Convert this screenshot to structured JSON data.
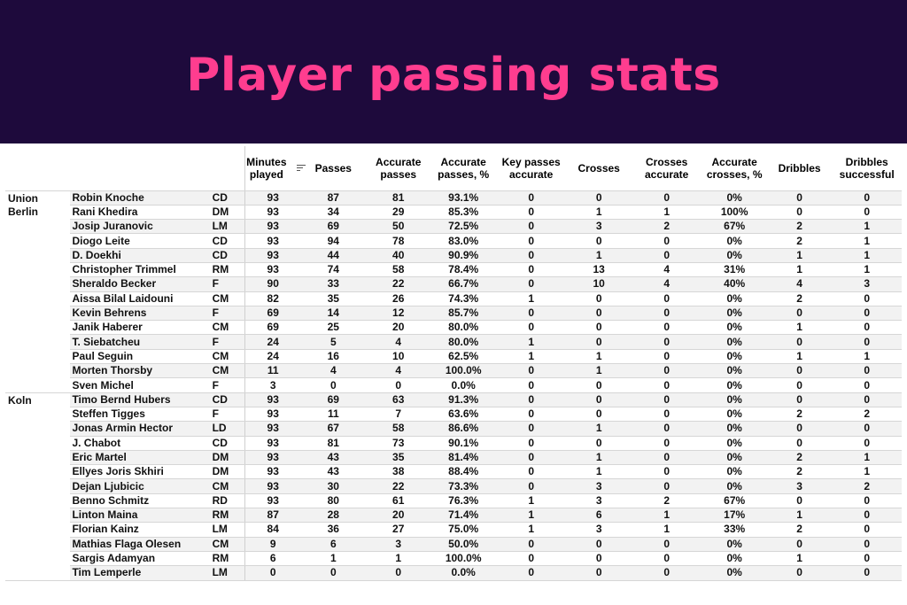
{
  "title": "Player passing stats",
  "columns": {
    "minutes_played": "Minutes played",
    "passes": "Passes",
    "accurate_passes": "Accurate passes",
    "accurate_passes_pct": "Accurate passes, %",
    "key_passes_accurate": "Key passes accurate",
    "crosses": "Crosses",
    "crosses_accurate": "Crosses accurate",
    "accurate_crosses_pct": "Accurate crosses, %",
    "dribbles": "Dribbles",
    "dribbles_successful": "Dribbles successful"
  },
  "sort_icon": "sort-descending-icon",
  "teams": [
    {
      "name": "Union Berlin",
      "players": [
        [
          "Robin Knoche",
          "CD",
          "93",
          "87",
          "81",
          "93.1%",
          "0",
          "0",
          "0",
          "0%",
          "0",
          "0"
        ],
        [
          "Rani Khedira",
          "DM",
          "93",
          "34",
          "29",
          "85.3%",
          "0",
          "1",
          "1",
          "100%",
          "0",
          "0"
        ],
        [
          "Josip Juranovic",
          "LM",
          "93",
          "69",
          "50",
          "72.5%",
          "0",
          "3",
          "2",
          "67%",
          "2",
          "1"
        ],
        [
          "Diogo Leite",
          "CD",
          "93",
          "94",
          "78",
          "83.0%",
          "0",
          "0",
          "0",
          "0%",
          "2",
          "1"
        ],
        [
          "D. Doekhi",
          "CD",
          "93",
          "44",
          "40",
          "90.9%",
          "0",
          "1",
          "0",
          "0%",
          "1",
          "1"
        ],
        [
          "Christopher Trimmel",
          "RM",
          "93",
          "74",
          "58",
          "78.4%",
          "0",
          "13",
          "4",
          "31%",
          "1",
          "1"
        ],
        [
          "Sheraldo Becker",
          "F",
          "90",
          "33",
          "22",
          "66.7%",
          "0",
          "10",
          "4",
          "40%",
          "4",
          "3"
        ],
        [
          "Aissa Bilal Laidouni",
          "CM",
          "82",
          "35",
          "26",
          "74.3%",
          "1",
          "0",
          "0",
          "0%",
          "2",
          "0"
        ],
        [
          "Kevin Behrens",
          "F",
          "69",
          "14",
          "12",
          "85.7%",
          "0",
          "0",
          "0",
          "0%",
          "0",
          "0"
        ],
        [
          "Janik Haberer",
          "CM",
          "69",
          "25",
          "20",
          "80.0%",
          "0",
          "0",
          "0",
          "0%",
          "1",
          "0"
        ],
        [
          "T. Siebatcheu",
          "F",
          "24",
          "5",
          "4",
          "80.0%",
          "1",
          "0",
          "0",
          "0%",
          "0",
          "0"
        ],
        [
          "Paul Seguin",
          "CM",
          "24",
          "16",
          "10",
          "62.5%",
          "1",
          "1",
          "0",
          "0%",
          "1",
          "1"
        ],
        [
          "Morten Thorsby",
          "CM",
          "11",
          "4",
          "4",
          "100.0%",
          "0",
          "1",
          "0",
          "0%",
          "0",
          "0"
        ],
        [
          "Sven Michel",
          "F",
          "3",
          "0",
          "0",
          "0.0%",
          "0",
          "0",
          "0",
          "0%",
          "0",
          "0"
        ]
      ]
    },
    {
      "name": "Koln",
      "players": [
        [
          "Timo Bernd Hubers",
          "CD",
          "93",
          "69",
          "63",
          "91.3%",
          "0",
          "0",
          "0",
          "0%",
          "0",
          "0"
        ],
        [
          "Steffen Tigges",
          "F",
          "93",
          "11",
          "7",
          "63.6%",
          "0",
          "0",
          "0",
          "0%",
          "2",
          "2"
        ],
        [
          "Jonas Armin Hector",
          "LD",
          "93",
          "67",
          "58",
          "86.6%",
          "0",
          "1",
          "0",
          "0%",
          "0",
          "0"
        ],
        [
          "J. Chabot",
          "CD",
          "93",
          "81",
          "73",
          "90.1%",
          "0",
          "0",
          "0",
          "0%",
          "0",
          "0"
        ],
        [
          "Eric Martel",
          "DM",
          "93",
          "43",
          "35",
          "81.4%",
          "0",
          "1",
          "0",
          "0%",
          "2",
          "1"
        ],
        [
          "Ellyes Joris Skhiri",
          "DM",
          "93",
          "43",
          "38",
          "88.4%",
          "0",
          "1",
          "0",
          "0%",
          "2",
          "1"
        ],
        [
          "Dejan Ljubicic",
          "CM",
          "93",
          "30",
          "22",
          "73.3%",
          "0",
          "3",
          "0",
          "0%",
          "3",
          "2"
        ],
        [
          "Benno Schmitz",
          "RD",
          "93",
          "80",
          "61",
          "76.3%",
          "1",
          "3",
          "2",
          "67%",
          "0",
          "0"
        ],
        [
          "Linton Maina",
          "RM",
          "87",
          "28",
          "20",
          "71.4%",
          "1",
          "6",
          "1",
          "17%",
          "1",
          "0"
        ],
        [
          "Florian Kainz",
          "LM",
          "84",
          "36",
          "27",
          "75.0%",
          "1",
          "3",
          "1",
          "33%",
          "2",
          "0"
        ],
        [
          "Mathias Flaga Olesen",
          "CM",
          "9",
          "6",
          "3",
          "50.0%",
          "0",
          "0",
          "0",
          "0%",
          "0",
          "0"
        ],
        [
          "Sargis Adamyan",
          "RM",
          "6",
          "1",
          "1",
          "100.0%",
          "0",
          "0",
          "0",
          "0%",
          "1",
          "0"
        ],
        [
          "Tim Lemperle",
          "LM",
          "0",
          "0",
          "0",
          "0.0%",
          "0",
          "0",
          "0",
          "0%",
          "0",
          "0"
        ]
      ]
    }
  ]
}
